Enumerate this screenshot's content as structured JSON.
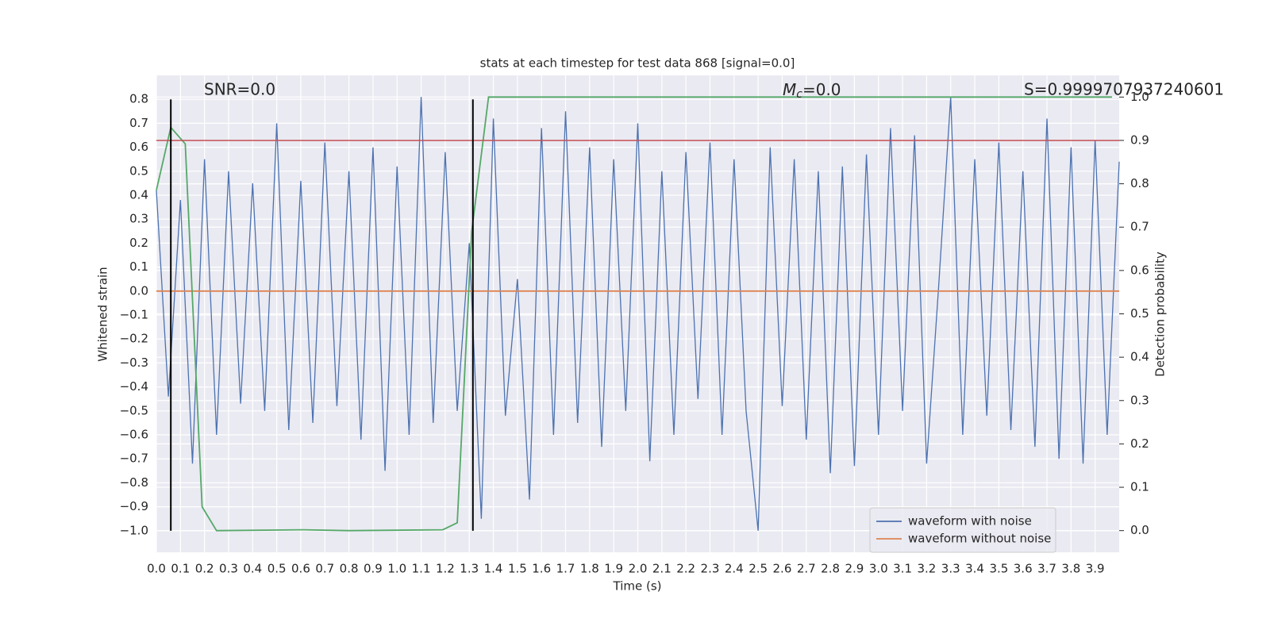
{
  "chart_data": {
    "type": "line",
    "title": "stats at each timestep for test data 868 [signal=0.0]",
    "xlabel": "Time (s)",
    "ylabel": "Whitened strain",
    "y2label": "Detection probability",
    "annotations": [
      "SNR=0.0",
      "Mc=0.0",
      "S=0.9999707937240601"
    ],
    "grid": true,
    "legend": "lower right",
    "xlim": [
      0,
      4.0
    ],
    "ylim": [
      -1.09,
      0.9
    ],
    "y2lim": [
      -0.05,
      1.05
    ],
    "xticks": [
      {
        "value": 0,
        "label": "0.0"
      },
      0.1,
      0.2,
      0.3,
      0.4,
      0.5,
      0.6,
      0.7,
      0.8,
      0.9,
      {
        "value": 1,
        "label": "1.0"
      },
      1.1,
      1.2,
      1.3,
      1.4,
      1.5,
      1.6,
      1.7,
      1.8,
      1.9,
      {
        "value": 2,
        "label": "2.0"
      },
      2.1,
      2.2,
      2.3,
      2.4,
      2.5,
      2.6,
      2.7,
      2.8,
      2.9,
      {
        "value": 3,
        "label": "3.0"
      },
      3.1,
      3.2,
      3.3,
      3.4,
      3.5,
      3.6,
      3.7,
      3.8,
      3.9
    ],
    "yticks": [
      {
        "value": -1,
        "label": "−1.0"
      },
      {
        "value": -0.9,
        "label": "−0.9"
      },
      {
        "value": -0.8,
        "label": "−0.8"
      },
      {
        "value": -0.7,
        "label": "−0.7"
      },
      {
        "value": -0.6,
        "label": "−0.6"
      },
      {
        "value": -0.5,
        "label": "−0.5"
      },
      {
        "value": -0.4,
        "label": "−0.4"
      },
      {
        "value": -0.3,
        "label": "−0.3"
      },
      {
        "value": -0.2,
        "label": "−0.2"
      },
      {
        "value": -0.1,
        "label": "−0.1"
      },
      {
        "value": 0,
        "label": "0.0"
      },
      0.1,
      0.2,
      0.3,
      0.4,
      0.5,
      0.6,
      0.7,
      0.8
    ],
    "y2ticks": [
      {
        "value": 0,
        "label": "0.0"
      },
      0.1,
      0.2,
      0.3,
      0.4,
      0.5,
      0.6,
      0.7,
      0.8,
      0.9,
      {
        "value": 1,
        "label": "1.0"
      }
    ],
    "series": [
      {
        "name": "waveform with noise",
        "color": "#4c72b0",
        "x": [
          0,
          0.05,
          0.1,
          0.15,
          0.2,
          0.25,
          0.3,
          0.35,
          0.4,
          0.45,
          0.5,
          0.55,
          0.6,
          0.65,
          0.7,
          0.75,
          0.8,
          0.85,
          0.9,
          0.95,
          1.0,
          1.05,
          1.1,
          1.15,
          1.2,
          1.25,
          1.3,
          1.35,
          1.4,
          1.45,
          1.5,
          1.55,
          1.6,
          1.65,
          1.7,
          1.75,
          1.8,
          1.85,
          1.9,
          1.95,
          2.0,
          2.05,
          2.1,
          2.15,
          2.2,
          2.25,
          2.3,
          2.35,
          2.4,
          2.45,
          2.5,
          2.55,
          2.6,
          2.65,
          2.7,
          2.75,
          2.8,
          2.85,
          2.9,
          2.95,
          3.0,
          3.05,
          3.1,
          3.15,
          3.2,
          3.25,
          3.3,
          3.35,
          3.4,
          3.45,
          3.5,
          3.55,
          3.6,
          3.65,
          3.7,
          3.75,
          3.8,
          3.85,
          3.9,
          3.95,
          4.0
        ],
        "values": [
          0.42,
          -0.44,
          0.38,
          -0.72,
          0.55,
          -0.6,
          0.5,
          -0.47,
          0.45,
          -0.5,
          0.7,
          -0.58,
          0.46,
          -0.55,
          0.62,
          -0.48,
          0.5,
          -0.62,
          0.6,
          -0.75,
          0.52,
          -0.6,
          0.81,
          -0.55,
          0.58,
          -0.5,
          0.2,
          -0.95,
          0.72,
          -0.52,
          0.05,
          -0.87,
          0.68,
          -0.6,
          0.75,
          -0.55,
          0.6,
          -0.65,
          0.55,
          -0.5,
          0.7,
          -0.71,
          0.5,
          -0.6,
          0.58,
          -0.45,
          0.62,
          -0.6,
          0.55,
          -0.5,
          -1.0,
          0.6,
          -0.48,
          0.55,
          -0.62,
          0.5,
          -0.76,
          0.52,
          -0.73,
          0.57,
          -0.6,
          0.68,
          -0.5,
          0.65,
          -0.72,
          0.02,
          0.81,
          -0.6,
          0.55,
          -0.52,
          0.62,
          -0.58,
          0.5,
          -0.65,
          0.72,
          -0.7,
          0.6,
          -0.72,
          0.63,
          -0.6,
          0.54
        ]
      },
      {
        "name": "waveform without noise",
        "color": "#dd8452",
        "x": [
          0,
          4.0
        ],
        "values": [
          0,
          0
        ]
      },
      {
        "color": "#55a868",
        "axis": "y2",
        "x": [
          0,
          0.06,
          0.12,
          0.19,
          0.25,
          0.61,
          0.8,
          1.19,
          1.25,
          1.31,
          1.38,
          3.97
        ],
        "values": [
          0.785,
          0.93,
          0.892,
          0.055,
          0.0,
          0.002,
          0.0,
          0.002,
          0.018,
          0.69,
          1.0,
          1.0
        ]
      }
    ],
    "threshold": {
      "value": 0.9,
      "axis": "y2",
      "color": "#c44e52"
    },
    "vlines": {
      "x": [
        0.06,
        1.315
      ],
      "ymin": -1.0,
      "ymax": 0.8,
      "color": "#000000"
    }
  }
}
